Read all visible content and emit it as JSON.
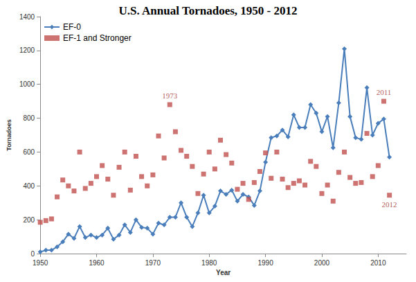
{
  "chart_data": {
    "type": "line",
    "title": "U.S. Annual Tornadoes, 1950 - 2012",
    "x_label": "Year",
    "y_label": "Tornadoes",
    "x": [
      1950,
      1951,
      1952,
      1953,
      1954,
      1955,
      1956,
      1957,
      1958,
      1959,
      1960,
      1961,
      1962,
      1963,
      1964,
      1965,
      1966,
      1967,
      1968,
      1969,
      1970,
      1971,
      1972,
      1973,
      1974,
      1975,
      1976,
      1977,
      1978,
      1979,
      1980,
      1981,
      1982,
      1983,
      1984,
      1985,
      1986,
      1987,
      1988,
      1989,
      1990,
      1991,
      1992,
      1993,
      1994,
      1995,
      1996,
      1997,
      1998,
      1999,
      2000,
      2001,
      2002,
      2003,
      2004,
      2005,
      2006,
      2007,
      2008,
      2009,
      2010,
      2011,
      2012
    ],
    "series": [
      {
        "name": "EF-0",
        "type": "line",
        "color": "#4a7ebb",
        "marker": "diamond",
        "line_style": "solid",
        "values": [
          10,
          20,
          20,
          40,
          70,
          115,
          90,
          160,
          95,
          110,
          95,
          110,
          150,
          85,
          110,
          170,
          125,
          200,
          155,
          150,
          115,
          180,
          170,
          215,
          215,
          300,
          215,
          160,
          240,
          345,
          240,
          280,
          370,
          350,
          375,
          310,
          350,
          335,
          285,
          370,
          540,
          685,
          695,
          730,
          690,
          820,
          745,
          745,
          880,
          830,
          720,
          810,
          625,
          890,
          1210,
          810,
          685,
          675,
          980,
          700,
          770,
          795,
          570
        ]
      },
      {
        "name": "EF-1 and Stronger",
        "type": "scatter",
        "color": "#c0504d",
        "marker": "square",
        "values": [
          185,
          195,
          205,
          335,
          435,
          400,
          370,
          600,
          385,
          415,
          455,
          520,
          440,
          345,
          510,
          600,
          375,
          575,
          455,
          400,
          465,
          695,
          565,
          880,
          720,
          610,
          575,
          515,
          355,
          470,
          600,
          500,
          670,
          585,
          535,
          380,
          415,
          320,
          420,
          485,
          595,
          445,
          600,
          440,
          390,
          415,
          430,
          405,
          545,
          515,
          355,
          405,
          310,
          480,
          600,
          450,
          415,
          420,
          710,
          455,
          520,
          900,
          345
        ]
      }
    ],
    "annotations": [
      {
        "text": "1973",
        "series": "EF-1 and Stronger",
        "x": 1973
      },
      {
        "text": "2011",
        "series": "EF-1 and Stronger",
        "x": 2011
      },
      {
        "text": "2012",
        "series": "EF-1 and Stronger",
        "x": 2012
      }
    ],
    "xlim": [
      1950,
      2015
    ],
    "xticks": [
      1950,
      1960,
      1970,
      1980,
      1990,
      2000,
      2010
    ],
    "ylim": [
      0,
      1400
    ],
    "yticks": [
      0,
      200,
      400,
      600,
      800,
      1000,
      1200,
      1400
    ],
    "grid": false,
    "legend": "upper left"
  }
}
